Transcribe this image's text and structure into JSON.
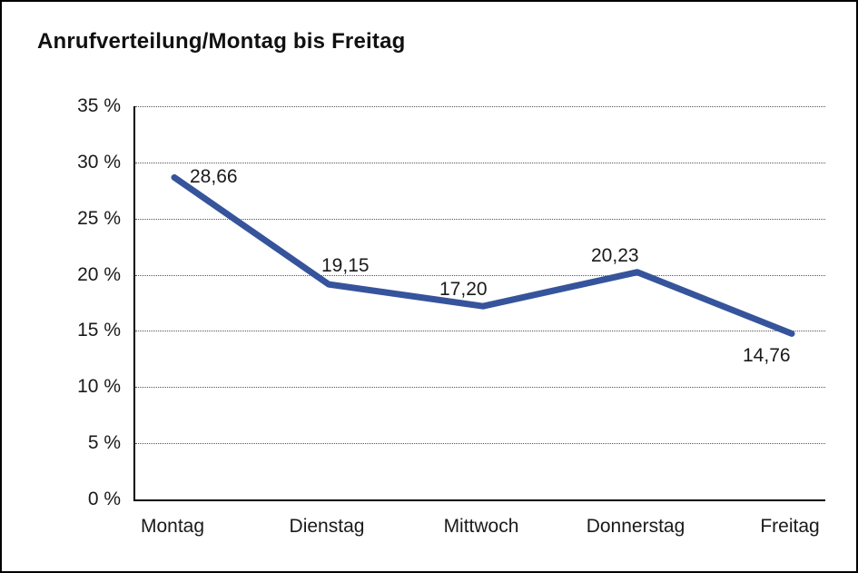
{
  "page": {
    "title": "Anrufverteilung/Montag bis Freitag"
  },
  "chart_data": {
    "type": "line",
    "title": "Anrufverteilung/Montag bis Freitag",
    "categories": [
      "Montag",
      "Dienstag",
      "Mittwoch",
      "Donnerstag",
      "Freitag"
    ],
    "values": [
      28.66,
      19.15,
      17.2,
      20.23,
      14.76
    ],
    "value_labels": [
      "28,66",
      "19,15",
      "17,20",
      "20,23",
      "14,76"
    ],
    "ytick_labels": [
      "35 %",
      "30 %",
      "25 %",
      "20 %",
      "15 %",
      "10 %",
      "5 %",
      "0 %"
    ],
    "ylabel": "",
    "xlabel": "",
    "ylim": [
      0,
      35
    ],
    "ytick_step": 5,
    "grid": "horizontal-dotted",
    "legend": "none",
    "line_color": "#36549C",
    "line_width": 7,
    "background_color": "#ffffff",
    "border_color": "#000000"
  }
}
